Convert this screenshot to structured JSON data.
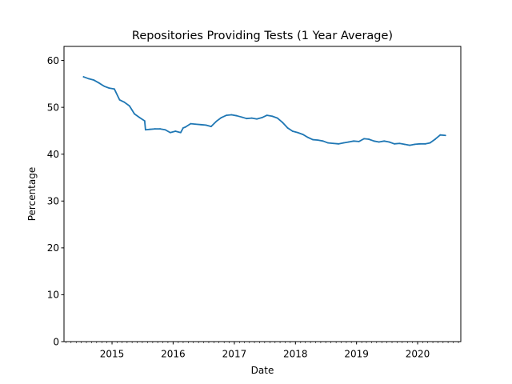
{
  "chart_data": {
    "type": "line",
    "title": "Repositories Providing Tests (1 Year Average)",
    "xlabel": "Date",
    "ylabel": "Percentage",
    "xlim": [
      "2014-03-20",
      "2020-09-15"
    ],
    "ylim": [
      0,
      63
    ],
    "x_ticks": [
      "2015",
      "2016",
      "2017",
      "2018",
      "2019",
      "2020"
    ],
    "y_ticks": [
      "0",
      "10",
      "20",
      "30",
      "40",
      "50",
      "60"
    ],
    "grid": false,
    "legend": "none",
    "series": [
      {
        "color": "#1f77b4",
        "x": [
          "2014-07-15",
          "2014-08-15",
          "2014-09-15",
          "2014-10-15",
          "2014-11-15",
          "2014-12-15",
          "2015-01-15",
          "2015-02-15",
          "2015-03-15",
          "2015-04-15",
          "2015-05-15",
          "2015-06-15",
          "2015-07-15",
          "2015-07-20",
          "2015-08-15",
          "2015-09-15",
          "2015-10-15",
          "2015-11-15",
          "2015-12-15",
          "2016-01-15",
          "2016-02-15",
          "2016-03-01",
          "2016-03-15",
          "2016-04-15",
          "2016-05-15",
          "2016-06-15",
          "2016-07-15",
          "2016-08-15",
          "2016-09-15",
          "2016-10-15",
          "2016-11-15",
          "2016-12-15",
          "2017-01-15",
          "2017-02-15",
          "2017-03-15",
          "2017-04-15",
          "2017-05-15",
          "2017-06-15",
          "2017-07-15",
          "2017-08-15",
          "2017-09-15",
          "2017-10-15",
          "2017-11-15",
          "2017-12-15",
          "2018-01-15",
          "2018-02-15",
          "2018-03-15",
          "2018-04-15",
          "2018-05-15",
          "2018-06-15",
          "2018-07-15",
          "2018-08-15",
          "2018-09-15",
          "2018-10-15",
          "2018-11-15",
          "2018-12-15",
          "2019-01-15",
          "2019-02-15",
          "2019-03-15",
          "2019-04-15",
          "2019-05-15",
          "2019-06-15",
          "2019-07-15",
          "2019-08-15",
          "2019-09-15",
          "2019-10-15",
          "2019-11-15",
          "2019-12-15",
          "2020-01-15",
          "2020-02-15",
          "2020-03-15",
          "2020-04-15",
          "2020-05-15",
          "2020-06-15"
        ],
        "y": [
          56.5,
          56.1,
          55.8,
          55.2,
          54.5,
          54.1,
          53.9,
          51.6,
          51.1,
          50.3,
          48.6,
          47.8,
          47.1,
          45.2,
          45.3,
          45.4,
          45.4,
          45.2,
          44.6,
          44.9,
          44.6,
          45.6,
          45.8,
          46.5,
          46.4,
          46.3,
          46.2,
          45.9,
          47.0,
          47.8,
          48.3,
          48.4,
          48.2,
          47.9,
          47.6,
          47.7,
          47.5,
          47.8,
          48.3,
          48.1,
          47.7,
          46.8,
          45.6,
          44.9,
          44.6,
          44.2,
          43.6,
          43.1,
          43.0,
          42.8,
          42.4,
          42.3,
          42.2,
          42.4,
          42.6,
          42.8,
          42.7,
          43.3,
          43.2,
          42.8,
          42.6,
          42.8,
          42.6,
          42.2,
          42.3,
          42.1,
          41.9,
          42.1,
          42.2,
          42.2,
          42.4,
          43.2,
          44.1,
          44.0
        ]
      }
    ]
  }
}
